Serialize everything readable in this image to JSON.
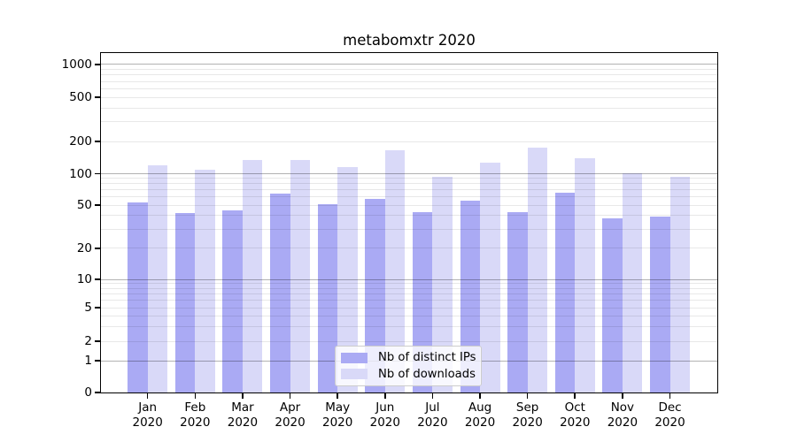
{
  "chart_data": {
    "type": "bar",
    "title": "metabomxtr 2020",
    "categories": [
      "Jan",
      "Feb",
      "Mar",
      "Apr",
      "May",
      "Jun",
      "Jul",
      "Aug",
      "Sep",
      "Oct",
      "Nov",
      "Dec"
    ],
    "year_label": "2020",
    "series": [
      {
        "name": "Nb of distinct IPs",
        "color": "#aaaaf4",
        "values": [
          53,
          42,
          45,
          65,
          51,
          57,
          43,
          55,
          43,
          66,
          38,
          39
        ]
      },
      {
        "name": "Nb of downloads",
        "color": "#d9d9f8",
        "values": [
          120,
          109,
          134,
          135,
          115,
          165,
          93,
          126,
          176,
          139,
          101,
          93
        ]
      }
    ],
    "y_axis": {
      "ticks": [
        0,
        1,
        2,
        5,
        10,
        20,
        50,
        100,
        200,
        500,
        1000
      ],
      "scale": "symlog",
      "range_top": 1300
    },
    "grid": "both",
    "legend_position": "lower center",
    "colors": {
      "spine": "#000000",
      "major_grid": "#b8b8b8",
      "minor_grid": "#e9e9e9",
      "background": "#ffffff"
    }
  }
}
